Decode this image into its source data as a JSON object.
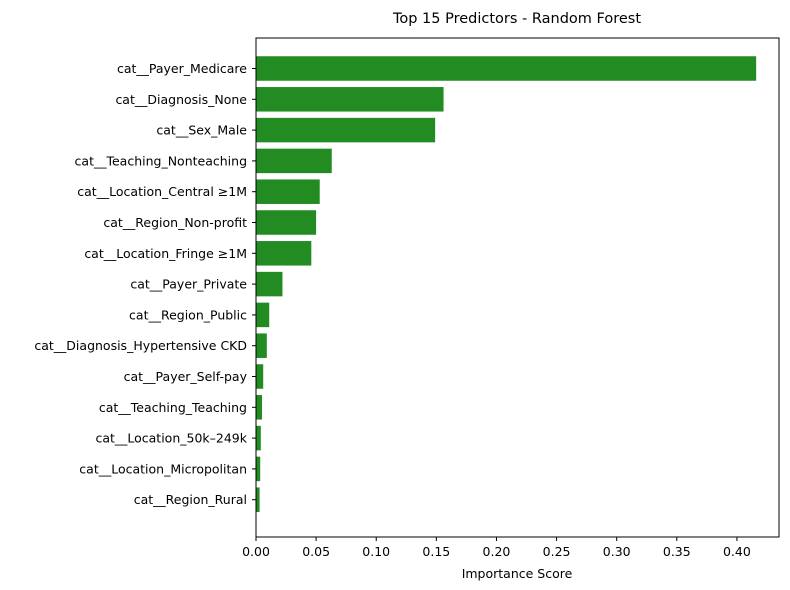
{
  "chart_data": {
    "type": "bar",
    "orientation": "horizontal",
    "title": "Top 15 Predictors - Random Forest",
    "xlabel": "Importance Score",
    "ylabel": "",
    "bar_color": "#228b22",
    "xlim": [
      0,
      0.435
    ],
    "xticks": [
      "0.00",
      "0.05",
      "0.10",
      "0.15",
      "0.20",
      "0.25",
      "0.30",
      "0.35",
      "0.40"
    ],
    "grid": false,
    "categories": [
      "cat__Payer_Medicare",
      "cat__Diagnosis_None",
      "cat__Sex_Male",
      "cat__Teaching_Nonteaching",
      "cat__Location_Central ≥1M",
      "cat__Region_Non-profit",
      "cat__Location_Fringe ≥1M",
      "cat__Payer_Private",
      "cat__Region_Public",
      "cat__Diagnosis_Hypertensive CKD",
      "cat__Payer_Self-pay",
      "cat__Teaching_Teaching",
      "cat__Location_50k–249k",
      "cat__Location_Micropolitan",
      "cat__Region_Rural"
    ],
    "values": [
      0.416,
      0.156,
      0.149,
      0.063,
      0.053,
      0.05,
      0.046,
      0.022,
      0.011,
      0.009,
      0.006,
      0.005,
      0.004,
      0.0035,
      0.003
    ]
  }
}
